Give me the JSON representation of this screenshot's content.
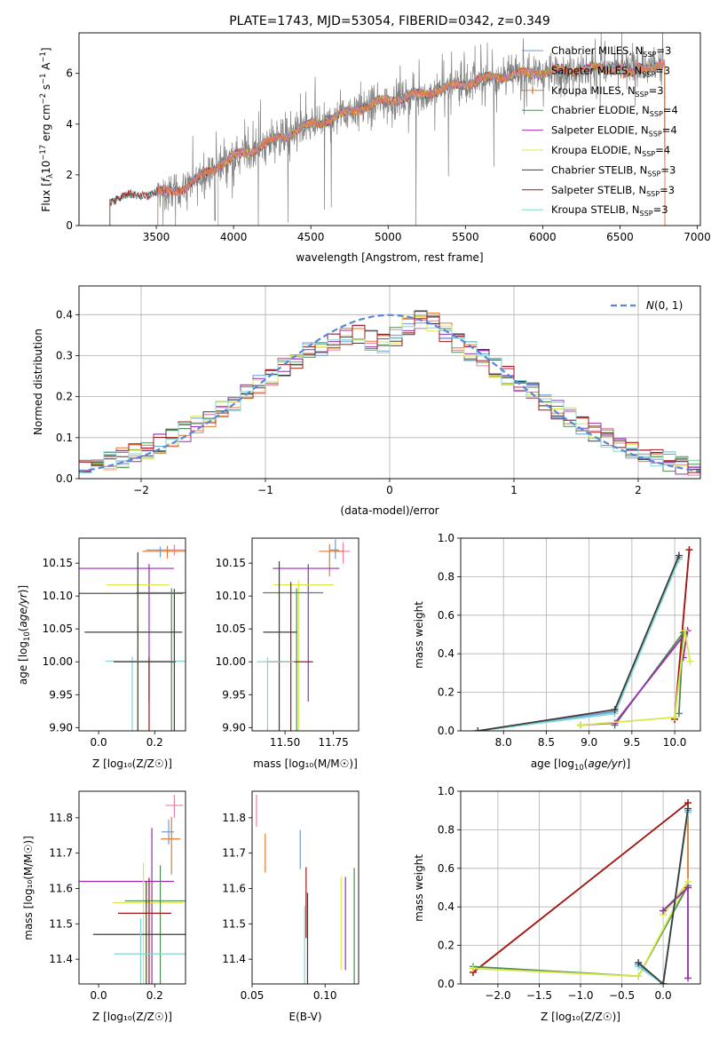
{
  "colors": {
    "Chabrier MILES": "#6a9bd6",
    "Salpeter MILES": "#e87fa8",
    "Kroupa MILES": "#e07a2e",
    "Chabrier ELODIE": "#4e8a52",
    "Salpeter ELODIE": "#9b2bb3",
    "Kroupa ELODIE": "#d8e84a",
    "Chabrier STELIB": "#3d3d3d",
    "Salpeter STELIB": "#a01818",
    "Kroupa STELIB": "#7ed6d0",
    "data": "#7f7f7f",
    "gaussian": "#5b86d4"
  },
  "chart_data": [
    {
      "id": "spectrum",
      "type": "line",
      "title": "PLATE=1743, MJD=53054, FIBERID=0342, z=0.349",
      "xlabel": "wavelength [Angstrom, rest frame]",
      "ylabel": "Flux [f_λ10^-17 erg cm^-2 s^-1 A^-1]",
      "xlim": [
        3000,
        7020
      ],
      "ylim": [
        0,
        7.6
      ],
      "xticks": [
        3500,
        4000,
        4500,
        5000,
        5500,
        6000,
        6500,
        7000
      ],
      "yticks": [
        0,
        2,
        4,
        6
      ],
      "legend_position": "upper right",
      "legend": [
        {
          "label": "Chabrier MILES, N",
          "sub": "SSP",
          "tail": "=3"
        },
        {
          "label": "Salpeter MILES, N",
          "sub": "SSP",
          "tail": "=3"
        },
        {
          "label": "Kroupa MILES, N",
          "sub": "SSP",
          "tail": "=3"
        },
        {
          "label": "Chabrier ELODIE, N",
          "sub": "SSP",
          "tail": "=4"
        },
        {
          "label": "Salpeter ELODIE, N",
          "sub": "SSP",
          "tail": "=4"
        },
        {
          "label": "Kroupa ELODIE, N",
          "sub": "SSP",
          "tail": "=4"
        },
        {
          "label": "Chabrier STELIB, N",
          "sub": "SSP",
          "tail": "=3"
        },
        {
          "label": "Salpeter STELIB, N",
          "sub": "SSP",
          "tail": "=3"
        },
        {
          "label": "Kroupa STELIB, N",
          "sub": "SSP",
          "tail": "=3"
        }
      ],
      "data_range": [
        3500,
        6780
      ],
      "continuum_x": [
        3000,
        3200,
        3400,
        3600,
        3700,
        3800,
        3900,
        4000,
        4200,
        4400,
        4600,
        4800,
        5000,
        5200,
        5400,
        5600,
        5800,
        6000,
        6200,
        6400,
        6600,
        6800,
        7000
      ],
      "continuum_y": [
        0.0,
        1.0,
        1.25,
        1.35,
        1.55,
        2.0,
        2.35,
        2.7,
        3.2,
        3.75,
        4.15,
        4.6,
        4.95,
        5.15,
        5.45,
        5.75,
        5.95,
        6.05,
        6.15,
        6.2,
        6.25,
        6.3,
        6.35
      ],
      "model_starts": {
        "Chabrier MILES": 3510,
        "Salpeter MILES": 3510,
        "Kroupa MILES": 3510,
        "Chabrier ELODIE": 3900,
        "Salpeter ELODIE": 3900,
        "Kroupa ELODIE": 3900,
        "Chabrier STELIB": 3200,
        "Salpeter STELIB": 3200,
        "Kroupa STELIB": 3200
      }
    },
    {
      "id": "residuals",
      "type": "histogram",
      "xlabel": "(data-model)/error",
      "ylabel": "Normed distribution",
      "xlim": [
        -2.5,
        2.5
      ],
      "ylim": [
        0,
        0.47
      ],
      "xticks": [
        -2,
        -1,
        0,
        1,
        2
      ],
      "yticks": [
        0.0,
        0.1,
        0.2,
        0.3,
        0.4
      ],
      "grid": true,
      "legend": [
        "N(0,1)"
      ],
      "legend_position": "upper right",
      "bin_width": 0.1
    },
    {
      "id": "age_vs_Z",
      "type": "errorbar",
      "xlabel": "Z [log10(Z/Z⊙)]",
      "ylabel": "age  [log10(age/yr)]",
      "xlim": [
        -0.07,
        0.31
      ],
      "ylim": [
        9.895,
        10.188
      ],
      "xticks": [
        0.0,
        0.2
      ],
      "yticks": [
        9.9,
        9.95,
        10.0,
        10.05,
        10.1,
        10.15
      ],
      "points": [
        {
          "series": "Chabrier MILES",
          "x": 0.22,
          "y": 10.17
        },
        {
          "series": "Salpeter MILES",
          "x": 0.27,
          "y": 10.17
        },
        {
          "series": "Kroupa MILES",
          "x": 0.245,
          "y": 10.168
        },
        {
          "series": "Salpeter ELODIE",
          "x": 0.18,
          "y": 10.142
        },
        {
          "series": "Kroupa ELODIE",
          "x": 0.14,
          "y": 10.117
        },
        {
          "series": "Chabrier STELIB",
          "x": 0.27,
          "y": 10.104
        },
        {
          "series": "Chabrier ELODIE",
          "x": 0.26,
          "y": 10.105
        },
        {
          "series": "Chabrier STELIB",
          "x": 0.14,
          "y": 10.045
        },
        {
          "series": "Kroupa STELIB",
          "x": 0.12,
          "y": 10.001
        },
        {
          "series": "Salpeter STELIB",
          "x": 0.18,
          "y": 10.0
        }
      ]
    },
    {
      "id": "age_vs_mass",
      "type": "errorbar",
      "xlabel": "mass [log10(M/M⊙)]",
      "xlim": [
        11.33,
        11.88
      ],
      "ylim": [
        9.895,
        10.188
      ],
      "xticks": [
        11.5,
        11.75
      ],
      "yticks": [
        9.9,
        9.95,
        10.0,
        10.05,
        10.1,
        10.15
      ],
      "points": [
        {
          "series": "Chabrier MILES",
          "x": 11.76,
          "y": 10.17
        },
        {
          "series": "Salpeter MILES",
          "x": 11.8,
          "y": 10.168
        },
        {
          "series": "Kroupa MILES",
          "x": 11.73,
          "y": 10.168
        },
        {
          "series": "Salpeter ELODIE",
          "x": 11.62,
          "y": 10.142
        },
        {
          "series": "Kroupa ELODIE",
          "x": 11.57,
          "y": 10.117
        },
        {
          "series": "Chabrier ELODIE",
          "x": 11.56,
          "y": 10.105
        },
        {
          "series": "Chabrier STELIB",
          "x": 11.47,
          "y": 10.045
        },
        {
          "series": "Salpeter STELIB",
          "x": 11.53,
          "y": 10.0
        },
        {
          "series": "Kroupa STELIB",
          "x": 11.41,
          "y": 10.0
        }
      ]
    },
    {
      "id": "weight_vs_age",
      "type": "line",
      "xlabel": "age  [log10(age/yr)]",
      "ylabel": "mass weight",
      "xlim": [
        7.5,
        10.3
      ],
      "ylim": [
        0,
        1
      ],
      "xticks": [
        8.0,
        8.5,
        9.0,
        9.5,
        10.0
      ],
      "yticks": [
        0.0,
        0.2,
        0.4,
        0.6,
        0.8,
        1.0
      ],
      "grid": true,
      "series": [
        {
          "name": "Chabrier MILES",
          "x": [
            7.7,
            9.3,
            10.05
          ],
          "y": [
            0.0,
            0.1,
            0.9
          ]
        },
        {
          "name": "Kroupa STELIB",
          "x": [
            7.7,
            9.3,
            10.05
          ],
          "y": [
            0.0,
            0.09,
            0.89
          ]
        },
        {
          "name": "Chabrier STELIB",
          "x": [
            7.7,
            9.3,
            10.05
          ],
          "y": [
            0.0,
            0.11,
            0.91
          ]
        },
        {
          "name": "Kroupa MILES",
          "x": [
            10.0,
            10.17
          ],
          "y": [
            0.06,
            0.94
          ]
        },
        {
          "name": "Salpeter STELIB",
          "x": [
            10.0,
            10.17
          ],
          "y": [
            0.06,
            0.94
          ]
        },
        {
          "name": "Chabrier ELODIE",
          "x": [
            9.3,
            10.1,
            10.05
          ],
          "y": [
            0.03,
            0.51,
            0.09
          ]
        },
        {
          "name": "Salpeter ELODIE",
          "x": [
            8.9,
            9.3,
            10.15,
            10.1
          ],
          "y": [
            0.03,
            0.04,
            0.52,
            0.38
          ]
        },
        {
          "name": "Kroupa ELODIE",
          "x": [
            8.9,
            10.0,
            10.12,
            10.18
          ],
          "y": [
            0.03,
            0.07,
            0.52,
            0.36
          ]
        }
      ]
    },
    {
      "id": "mass_vs_Z",
      "type": "errorbar",
      "xlabel": "Z [log10(Z/Z⊙)]",
      "ylabel": "mass [log10(M/M⊙)]",
      "xlim": [
        -0.07,
        0.31
      ],
      "ylim": [
        11.33,
        11.875
      ],
      "xticks": [
        0.0,
        0.2
      ],
      "yticks": [
        11.4,
        11.5,
        11.6,
        11.7,
        11.8
      ],
      "points": [
        {
          "series": "Salpeter MILES",
          "x": 0.27,
          "y": 11.835
        },
        {
          "series": "Chabrier MILES",
          "x": 0.25,
          "y": 11.76
        },
        {
          "series": "Kroupa MILES",
          "x": 0.26,
          "y": 11.74
        },
        {
          "series": "Salpeter ELODIE",
          "x": 0.19,
          "y": 11.62
        },
        {
          "series": "Kroupa ELODIE",
          "x": 0.16,
          "y": 11.56
        },
        {
          "series": "Chabrier ELODIE",
          "x": 0.22,
          "y": 11.565
        },
        {
          "series": "Salpeter STELIB",
          "x": 0.18,
          "y": 11.53
        },
        {
          "series": "Chabrier STELIB",
          "x": 0.17,
          "y": 11.47
        },
        {
          "series": "Kroupa STELIB",
          "x": 0.15,
          "y": 11.415
        }
      ]
    },
    {
      "id": "mass_vs_ebv",
      "type": "errorbar",
      "xlabel": "E(B-V)",
      "xlim": [
        0.05,
        0.123
      ],
      "ylim": [
        11.33,
        11.875
      ],
      "xticks": [
        0.05,
        0.1
      ],
      "yticks": [
        11.4,
        11.5,
        11.6,
        11.7,
        11.8
      ],
      "points": [
        {
          "series": "Salpeter MILES",
          "x": 0.053,
          "y": 11.82
        },
        {
          "series": "Kroupa MILES",
          "x": 0.059,
          "y": 11.7
        },
        {
          "series": "Chabrier MILES",
          "x": 0.083,
          "y": 11.71
        },
        {
          "series": "Salpeter STELIB",
          "x": 0.087,
          "y": 11.56
        },
        {
          "series": "Chabrier STELIB",
          "x": 0.088,
          "y": 11.5
        },
        {
          "series": "Kroupa STELIB",
          "x": 0.086,
          "y": 11.45
        },
        {
          "series": "Kroupa ELODIE",
          "x": 0.111,
          "y": 11.52
        },
        {
          "series": "Salpeter ELODIE",
          "x": 0.114,
          "y": 11.52
        },
        {
          "series": "Chabrier ELODIE",
          "x": 0.12,
          "y": 11.52
        }
      ]
    },
    {
      "id": "weight_vs_Z",
      "type": "line",
      "xlabel": "Z [log10(Z/Z⊙)]",
      "ylabel": "mass weight",
      "xlim": [
        -2.45,
        0.45
      ],
      "ylim": [
        0,
        1
      ],
      "xticks": [
        -2.0,
        -1.5,
        -1.0,
        -0.5,
        0.0
      ],
      "yticks": [
        0.0,
        0.2,
        0.4,
        0.6,
        0.8,
        1.0
      ],
      "grid": true,
      "series": [
        {
          "name": "Kroupa MILES",
          "x": [
            -2.3,
            0.3,
            0.3
          ],
          "y": [
            0.06,
            0.94,
            0.5
          ]
        },
        {
          "name": "Salpeter STELIB",
          "x": [
            -2.3,
            0.3
          ],
          "y": [
            0.06,
            0.94
          ]
        },
        {
          "name": "Chabrier ELODIE",
          "x": [
            -2.3,
            -0.3,
            0.3,
            0.0
          ],
          "y": [
            0.09,
            0.04,
            0.51,
            0.38
          ]
        },
        {
          "name": "Kroupa ELODIE",
          "x": [
            -2.3,
            -0.3,
            0.3,
            0.0
          ],
          "y": [
            0.08,
            0.04,
            0.53,
            0.36
          ]
        },
        {
          "name": "Salpeter ELODIE",
          "x": [
            0.0,
            0.3,
            0.3
          ],
          "y": [
            0.38,
            0.5,
            0.03
          ]
        },
        {
          "name": "Chabrier MILES",
          "x": [
            -0.3,
            0.0,
            0.3
          ],
          "y": [
            0.1,
            0.0,
            0.9
          ]
        },
        {
          "name": "Kroupa STELIB",
          "x": [
            -0.3,
            0.0,
            0.3
          ],
          "y": [
            0.09,
            0.0,
            0.89
          ]
        },
        {
          "name": "Chabrier STELIB",
          "x": [
            -0.3,
            0.0,
            0.3
          ],
          "y": [
            0.11,
            0.0,
            0.91
          ]
        }
      ]
    }
  ]
}
